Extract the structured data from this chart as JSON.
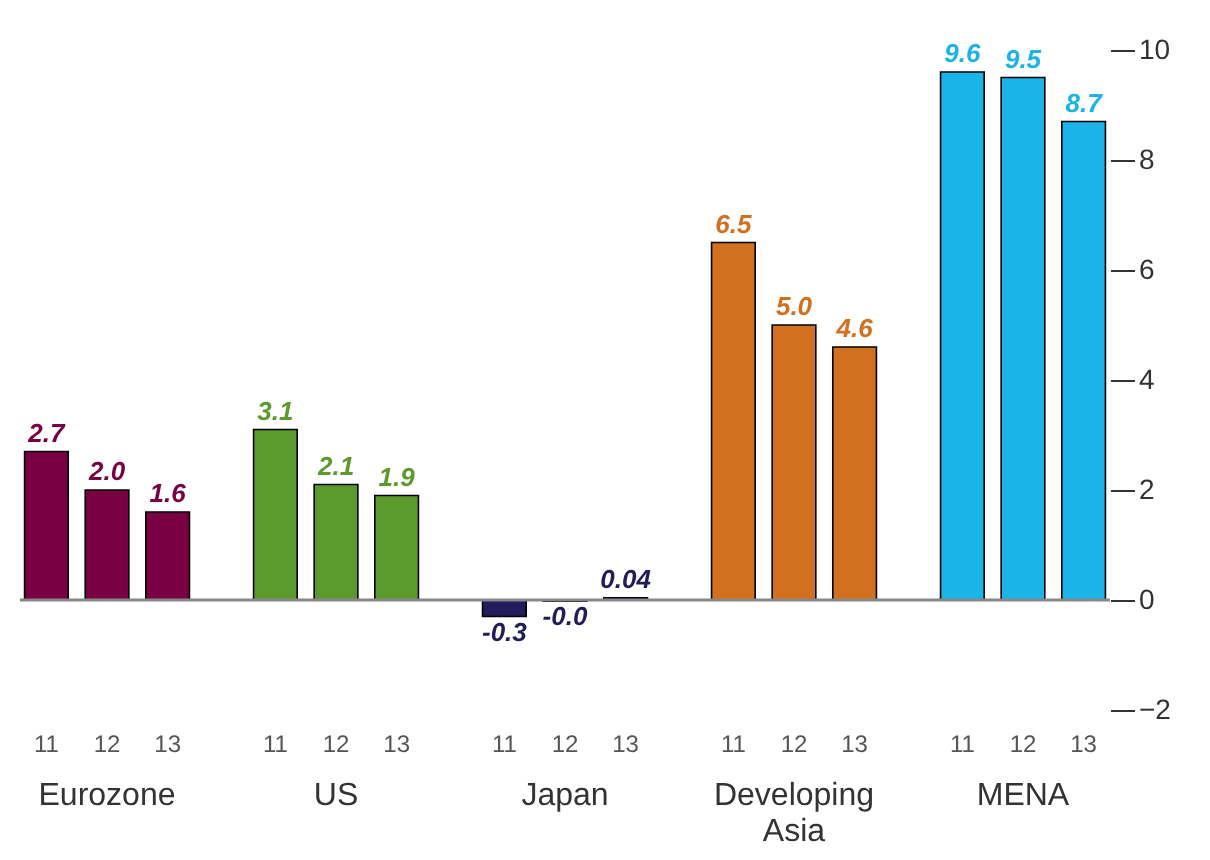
{
  "chart_data": {
    "type": "bar",
    "categories": [
      "Eurozone",
      "US",
      "Japan",
      "Developing Asia",
      "MENA"
    ],
    "series": [
      {
        "name": "11",
        "values": [
          2.7,
          3.1,
          -0.3,
          6.5,
          9.6
        ],
        "value_labels": [
          "2.7",
          "3.1",
          "-0.3",
          "6.5",
          "9.6"
        ],
        "colors": [
          "#780043",
          "#5c9a2e",
          "#221d5a",
          "#d2701f",
          "#1bb4e8"
        ]
      },
      {
        "name": "12",
        "values": [
          2.0,
          2.1,
          -0.02,
          5.0,
          9.5
        ],
        "value_labels": [
          "2.0",
          "2.1",
          "-0.0",
          "5.0",
          "9.5"
        ],
        "colors": [
          "#780043",
          "#5c9a2e",
          "#221d5a",
          "#d2701f",
          "#1bb4e8"
        ]
      },
      {
        "name": "13",
        "values": [
          1.6,
          1.9,
          0.04,
          4.6,
          8.7
        ],
        "value_labels": [
          "1.6",
          "1.9",
          "0.04",
          "4.6",
          "8.7"
        ],
        "colors": [
          "#780043",
          "#5c9a2e",
          "#221d5a",
          "#d2701f",
          "#1bb4e8"
        ]
      }
    ],
    "ylim": [
      -2,
      10
    ],
    "yticks": [
      -2,
      0,
      2,
      4,
      6,
      8,
      10
    ],
    "ref_lines": [
      {
        "axis": "y",
        "value": 0,
        "color": "#888888"
      }
    ],
    "grid": false
  }
}
